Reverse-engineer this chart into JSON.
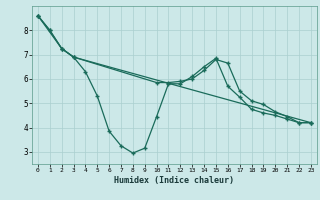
{
  "xlabel": "Humidex (Indice chaleur)",
  "bg_color": "#cce8e8",
  "grid_color": "#aacfcf",
  "line_color": "#1a6b5a",
  "line1_x": [
    0,
    1,
    2,
    3,
    4,
    5,
    6,
    7,
    8,
    9,
    10,
    11,
    12,
    13,
    14,
    15,
    16,
    17,
    18,
    19,
    20,
    21,
    22,
    23
  ],
  "line1_y": [
    8.6,
    8.0,
    7.25,
    6.9,
    6.3,
    5.3,
    3.85,
    3.25,
    2.95,
    3.15,
    4.45,
    5.8,
    5.8,
    6.1,
    6.5,
    6.85,
    5.7,
    5.25,
    4.75,
    4.6,
    4.5,
    4.35,
    4.2,
    4.2
  ],
  "line2_x": [
    0,
    2,
    3,
    23
  ],
  "line2_y": [
    8.6,
    7.25,
    6.9,
    4.2
  ],
  "line3_x": [
    0,
    1,
    2,
    3,
    10,
    11,
    12,
    13,
    14,
    15,
    16,
    17,
    18,
    19,
    20,
    21,
    22,
    23
  ],
  "line3_y": [
    8.6,
    8.0,
    7.25,
    6.9,
    5.85,
    5.85,
    5.9,
    6.0,
    6.35,
    6.8,
    6.65,
    5.5,
    5.1,
    4.95,
    4.65,
    4.45,
    4.2,
    4.2
  ],
  "ylim": [
    2.5,
    9.0
  ],
  "yticks": [
    3,
    4,
    5,
    6,
    7,
    8
  ],
  "xlim": [
    -0.5,
    23.5
  ],
  "xticks": [
    0,
    1,
    2,
    3,
    4,
    5,
    6,
    7,
    8,
    9,
    10,
    11,
    12,
    13,
    14,
    15,
    16,
    17,
    18,
    19,
    20,
    21,
    22,
    23
  ]
}
